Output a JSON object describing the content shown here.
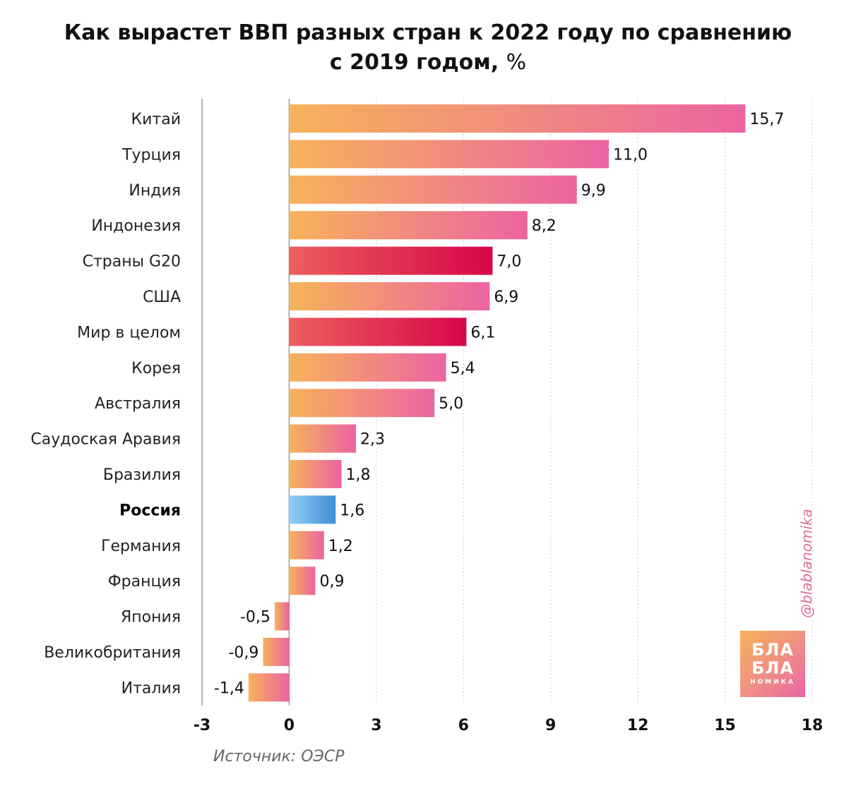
{
  "title": {
    "line1": "Как вырастет ВВП разных стран к 2022 году по сравнению",
    "line2": "с 2019 годом,",
    "unit": "%"
  },
  "colors": {
    "default_start": "#f6b35a",
    "default_end": "#ec63a2",
    "aggregate_start": "#ec5f5d",
    "aggregate_end": "#d7074a",
    "russia_start": "#8fd0f4",
    "russia_end": "#3f8fd4",
    "grid": "#cfcfcf",
    "axis": "#999999"
  },
  "chart_data": {
    "type": "bar",
    "orientation": "horizontal",
    "title": "Как вырастет ВВП разных стран к 2022 году по сравнению с 2019 годом, %",
    "xlabel": "",
    "ylabel": "",
    "xlim": [
      -3,
      18
    ],
    "xticks": [
      -3,
      0,
      3,
      6,
      9,
      12,
      15,
      18
    ],
    "tick_labels": [
      "-3",
      "0",
      "3",
      "6",
      "9",
      "12",
      "15",
      "18"
    ],
    "grid": true,
    "categories": [
      "Китай",
      "Турция",
      "Индия",
      "Индонезия",
      "Страны G20",
      "США",
      "Мир в целом",
      "Корея",
      "Австралия",
      "Саудоская Аравия",
      "Бразилия",
      "Россия",
      "Германия",
      "Франция",
      "Япония",
      "Великобритания",
      "Италия"
    ],
    "values": [
      15.7,
      11.0,
      9.9,
      8.2,
      7.0,
      6.9,
      6.1,
      5.4,
      5.0,
      2.3,
      1.8,
      1.6,
      1.2,
      0.9,
      -0.5,
      -0.9,
      -1.4
    ],
    "value_labels": [
      "15,7",
      "11,0",
      "9,9",
      "8,2",
      "7,0",
      "6,9",
      "6,1",
      "5,4",
      "5,0",
      "2,3",
      "1,8",
      "1,6",
      "1,2",
      "0,9",
      "-0,5",
      "-0,9",
      "-1,4"
    ],
    "bar_styles": [
      "default",
      "default",
      "default",
      "default",
      "aggregate",
      "default",
      "aggregate",
      "default",
      "default",
      "default",
      "default",
      "russia",
      "default",
      "default",
      "default",
      "default",
      "default"
    ],
    "bold_categories": [
      "Россия"
    ]
  },
  "source": "Источник: ОЭСР",
  "watermark": {
    "handle": "@blablanomika",
    "logo_line1": "БЛА",
    "logo_line2": "БЛА",
    "logo_line3": "НОМИКА"
  }
}
